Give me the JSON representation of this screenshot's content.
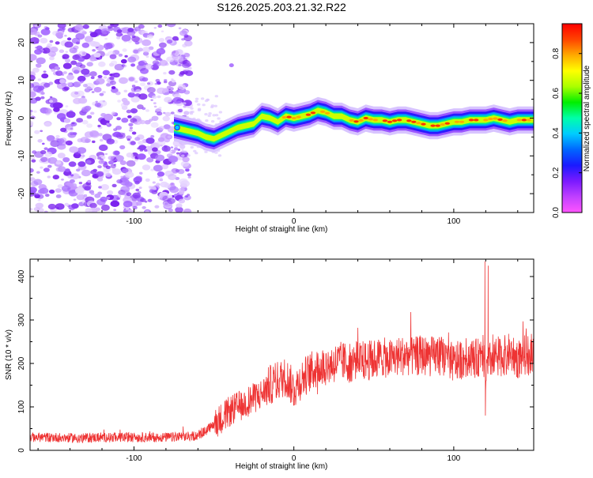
{
  "title": "S126.2025.203.21.32.R22",
  "chart_data": [
    {
      "type": "heatmap",
      "title": "S126.2025.203.21.32.R22",
      "xlabel": "Height of straight line (km)",
      "ylabel": "Frequency (Hz)",
      "xlim": [
        -165,
        150
      ],
      "ylim": [
        -25,
        25
      ],
      "xticks": [
        -100,
        0,
        100
      ],
      "yticks": [
        -20,
        -10,
        0,
        10,
        20
      ],
      "xtick_labels": [
        "-100",
        "0",
        "100"
      ],
      "ytick_labels": [
        "-20",
        "-10",
        "0",
        "10",
        "20"
      ],
      "colorbar": {
        "label": "Normalized spectral amplitude",
        "range": [
          0,
          0.95
        ],
        "ticks": [
          0,
          0.2,
          0.4,
          0.6,
          0.8
        ],
        "tick_labels": [
          "0.0",
          "0.2",
          "0.4",
          "0.6",
          "0.8"
        ],
        "colors": [
          "#ff55ff",
          "#c040ff",
          "#7a1aff",
          "#1a1aff",
          "#0066ff",
          "#00ccff",
          "#00ffaa",
          "#00ee00",
          "#aaff00",
          "#ffff00",
          "#ffaa00",
          "#ff4400",
          "#ff0000"
        ]
      },
      "noise_region_x": [
        -165,
        -65
      ],
      "ridge": {
        "x": [
          -75,
          -70,
          -65,
          -60,
          -55,
          -50,
          -45,
          -40,
          -35,
          -30,
          -25,
          -20,
          -15,
          -10,
          -5,
          0,
          5,
          10,
          15,
          20,
          25,
          30,
          35,
          40,
          45,
          50,
          55,
          60,
          65,
          70,
          75,
          80,
          85,
          90,
          95,
          100,
          105,
          110,
          115,
          120,
          125,
          130,
          135,
          140,
          145,
          150
        ],
        "frequency": [
          -2.5,
          -3.0,
          -3.5,
          -4.0,
          -5.0,
          -5.5,
          -4.5,
          -3.5,
          -2.5,
          -2.0,
          -1.5,
          0.5,
          0.0,
          -1.0,
          0.5,
          0.0,
          0.5,
          1.0,
          2.0,
          1.5,
          0.5,
          0.5,
          -0.5,
          -1.0,
          0.0,
          -0.5,
          -0.5,
          -1.0,
          -0.5,
          -0.5,
          -1.0,
          -1.5,
          -2.0,
          -2.0,
          -1.5,
          -1.0,
          -1.0,
          -0.5,
          -0.5,
          -0.5,
          0.0,
          -0.5,
          -1.0,
          -0.5,
          -0.5,
          -0.5
        ]
      }
    },
    {
      "type": "line",
      "xlabel": "Height of straight line (km)",
      "ylabel": "SNR (10 * v/v)",
      "xlim": [
        -165,
        150
      ],
      "ylim": [
        0,
        440
      ],
      "xticks": [
        -100,
        0,
        100
      ],
      "yticks": [
        0,
        100,
        200,
        300,
        400
      ],
      "xtick_labels": [
        "-100",
        "0",
        "100"
      ],
      "ytick_labels": [
        "0",
        "100",
        "200",
        "300",
        "400"
      ],
      "color": "#ee3333",
      "x": [
        -165,
        -150,
        -135,
        -120,
        -105,
        -90,
        -75,
        -65,
        -60,
        -55,
        -50,
        -45,
        -40,
        -35,
        -30,
        -25,
        -20,
        -15,
        -10,
        -5,
        0,
        5,
        10,
        15,
        20,
        25,
        30,
        35,
        40,
        45,
        50,
        55,
        60,
        65,
        70,
        75,
        80,
        85,
        90,
        95,
        100,
        105,
        110,
        115,
        118,
        120,
        122,
        125,
        130,
        135,
        140,
        145,
        150
      ],
      "y": [
        30,
        30,
        28,
        30,
        30,
        30,
        30,
        32,
        35,
        45,
        60,
        75,
        90,
        100,
        110,
        120,
        130,
        150,
        160,
        170,
        140,
        165,
        180,
        190,
        195,
        200,
        205,
        200,
        210,
        205,
        210,
        215,
        210,
        215,
        220,
        215,
        220,
        215,
        220,
        215,
        200,
        210,
        215,
        210,
        240,
        170,
        200,
        220,
        215,
        225,
        210,
        220,
        225
      ],
      "spikes": [
        {
          "x": 119.5,
          "y": 435
        },
        {
          "x": 121.5,
          "y": 425
        },
        {
          "x": 119.8,
          "y": 80
        }
      ]
    }
  ]
}
